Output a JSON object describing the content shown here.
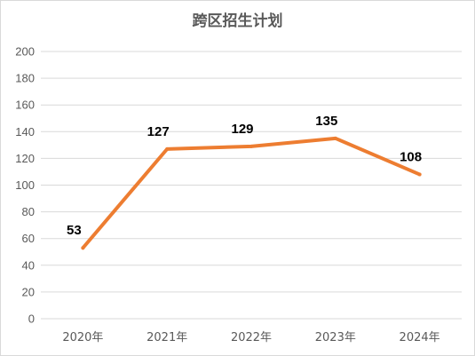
{
  "chart_data": {
    "type": "line",
    "title": "跨区招生计划",
    "xlabel": "",
    "ylabel": "",
    "categories": [
      "2020年",
      "2021年",
      "2022年",
      "2023年",
      "2024年"
    ],
    "series": [
      {
        "values": [
          53,
          127,
          129,
          135,
          108
        ]
      }
    ],
    "data_labels": [
      "53",
      "127",
      "129",
      "135",
      "108"
    ],
    "y_ticks": [
      "0",
      "20",
      "40",
      "60",
      "80",
      "100",
      "120",
      "140",
      "160",
      "180",
      "200"
    ],
    "ylim": [
      0,
      200
    ],
    "grid": true,
    "legend": "none",
    "colors": {
      "line": "#ED7D31",
      "grid": "#D9D9D9",
      "axis_text": "#595959"
    }
  }
}
